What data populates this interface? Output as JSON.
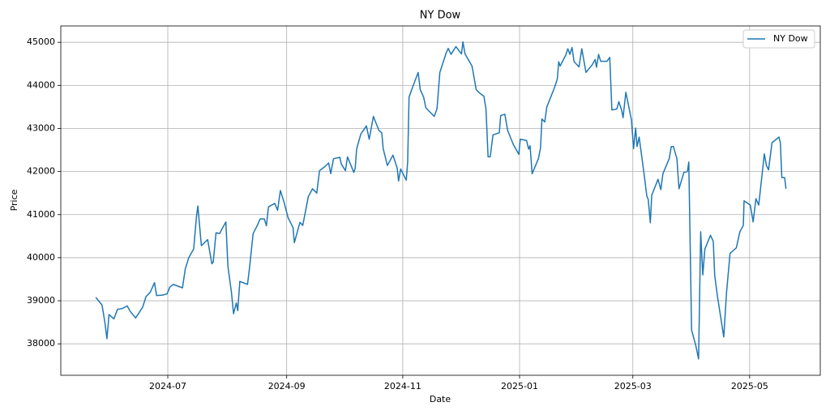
{
  "chart_data": {
    "type": "line",
    "title": "NY Dow",
    "x_label": "Date",
    "y_label": "Price",
    "x": [
      2024.394,
      2024.403,
      2024.407,
      2024.41,
      2024.413,
      2024.42,
      2024.425,
      2024.432,
      2024.439,
      2024.443,
      2024.451,
      2024.461,
      2024.466,
      2024.472,
      2024.478,
      2024.481,
      2024.489,
      2024.496,
      2024.5,
      2024.505,
      2024.518,
      2024.522,
      2024.527,
      2024.534,
      2024.538,
      2024.54,
      2024.545,
      2024.554,
      2024.56,
      2024.562,
      2024.566,
      2024.571,
      2024.58,
      2024.583,
      2024.588,
      2024.591,
      2024.595,
      2024.597,
      2024.6,
      2024.611,
      2024.614,
      2024.619,
      2024.625,
      2024.629,
      2024.635,
      2024.638,
      2024.641,
      2024.65,
      2024.654,
      2024.658,
      2024.663,
      2024.669,
      2024.676,
      2024.678,
      2024.686,
      2024.69,
      2024.698,
      2024.704,
      2024.71,
      2024.714,
      2024.722,
      2024.727,
      2024.73,
      2024.734,
      2024.743,
      2024.745,
      2024.751,
      2024.754,
      2024.763,
      2024.765,
      2024.767,
      2024.773,
      2024.781,
      2024.785,
      2024.791,
      2024.799,
      2024.803,
      2024.805,
      2024.811,
      2024.819,
      2024.825,
      2024.827,
      2024.83,
      2024.838,
      2024.84,
      2024.842,
      2024.848,
      2024.855,
      2024.858,
      2024.863,
      2024.866,
      2024.878,
      2024.882,
      2024.886,
      2024.895,
      2024.898,
      2024.902,
      2024.909,
      2024.917,
      2024.919,
      2024.922,
      2024.932,
      2024.938,
      2024.943,
      2024.949,
      2024.952,
      2024.955,
      2024.958,
      2024.962,
      2024.971,
      2024.973,
      2024.979,
      2024.983,
      2024.991,
      2024.999,
      2025.001,
      2025.01,
      2025.013,
      2025.015,
      2025.018,
      2025.027,
      2025.03,
      2025.032,
      2025.036,
      2025.039,
      2025.05,
      2025.054,
      2025.056,
      2025.058,
      2025.066,
      2025.069,
      2025.072,
      2025.075,
      2025.078,
      2025.085,
      2025.089,
      2025.095,
      2025.104,
      2025.108,
      2025.11,
      2025.113,
      2025.116,
      2025.125,
      2025.129,
      2025.132,
      2025.139,
      2025.142,
      2025.146,
      2025.148,
      2025.152,
      2025.16,
      2025.163,
      2025.166,
      2025.168,
      2025.171,
      2025.178,
      2025.182,
      2025.184,
      2025.187,
      2025.189,
      2025.198,
      2025.202,
      2025.205,
      2025.214,
      2025.217,
      2025.22,
      2025.225,
      2025.228,
      2025.235,
      2025.24,
      2025.242,
      2025.246,
      2025.252,
      2025.256,
      2025.259,
      2025.262,
      2025.265,
      2025.273,
      2025.277,
      2025.279,
      2025.283,
      2025.292,
      2025.296,
      2025.301,
      2025.31,
      2025.315,
      2025.32,
      2025.321,
      2025.33,
      2025.334,
      2025.338,
      2025.342,
      2025.35,
      2025.353,
      2025.356,
      2025.361,
      2025.371,
      2025.373,
      2025.375,
      2025.379,
      2025.381
    ],
    "series": [
      {
        "name": "NY Dow",
        "color": "#1f77b4",
        "values": [
          39080,
          38900,
          38500,
          38120,
          38680,
          38580,
          38800,
          38820,
          38880,
          38760,
          38600,
          38850,
          39100,
          39200,
          39420,
          39120,
          39130,
          39160,
          39320,
          39380,
          39300,
          39740,
          40000,
          40200,
          40950,
          41200,
          40280,
          40420,
          39860,
          39900,
          40580,
          40560,
          40830,
          39800,
          39200,
          38700,
          38950,
          38770,
          39450,
          39380,
          39780,
          40560,
          40750,
          40900,
          40900,
          40740,
          41180,
          41260,
          41100,
          41560,
          41300,
          40930,
          40700,
          40350,
          40820,
          40750,
          41420,
          41600,
          41500,
          42020,
          42120,
          42200,
          41950,
          42300,
          42330,
          42180,
          42020,
          42340,
          41980,
          42080,
          42520,
          42870,
          43060,
          42750,
          43280,
          42950,
          42900,
          42530,
          42140,
          42380,
          42080,
          41780,
          42060,
          41800,
          42220,
          43730,
          44000,
          44300,
          43900,
          43720,
          43480,
          43280,
          43460,
          44300,
          44750,
          44860,
          44720,
          44900,
          44730,
          45010,
          44730,
          44450,
          43900,
          43820,
          43750,
          43450,
          42340,
          42340,
          42850,
          42900,
          43300,
          43330,
          42950,
          42630,
          42400,
          42750,
          42720,
          42520,
          42600,
          41950,
          42300,
          42550,
          43220,
          43150,
          43500,
          43950,
          44150,
          44550,
          44450,
          44700,
          44850,
          44720,
          44880,
          44550,
          44430,
          44850,
          44300,
          44480,
          44600,
          44420,
          44720,
          44560,
          44560,
          44650,
          43430,
          43450,
          43620,
          43420,
          43250,
          43840,
          43200,
          42530,
          43010,
          42580,
          42800,
          41950,
          41430,
          41350,
          40810,
          41450,
          41820,
          41580,
          41950,
          42300,
          42580,
          42580,
          42300,
          41600,
          41980,
          42000,
          42220,
          38320,
          37960,
          37650,
          40600,
          39600,
          40200,
          40520,
          40380,
          39600,
          39100,
          38160,
          39200,
          40100,
          40230,
          40600,
          40750,
          41320,
          41220,
          40830,
          41370,
          41220,
          42410,
          42140,
          42040,
          42670,
          42800,
          42660,
          41860,
          41860,
          41600
        ]
      }
    ],
    "xlim": [
      2024.344,
      2025.43
    ],
    "xticks": [
      {
        "value": 2024.497,
        "label": "2024-07"
      },
      {
        "value": 2024.667,
        "label": "2024-09"
      },
      {
        "value": 2024.833,
        "label": "2024-11"
      },
      {
        "value": 2025.0,
        "label": "2025-01"
      },
      {
        "value": 2025.162,
        "label": "2025-03"
      },
      {
        "value": 2025.329,
        "label": "2025-05"
      }
    ],
    "ylim": [
      37270,
      45380
    ],
    "yticks": [
      38000,
      39000,
      40000,
      41000,
      42000,
      43000,
      44000,
      45000
    ],
    "grid": true,
    "legend": "upper right"
  }
}
